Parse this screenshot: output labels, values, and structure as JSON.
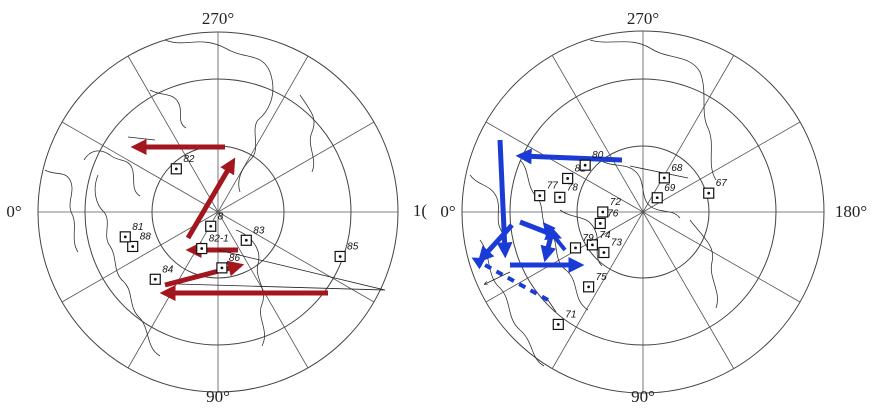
{
  "left_map": {
    "labels": {
      "top": "270°",
      "left": "0°",
      "right": "1(",
      "bottom": "90°"
    },
    "points": [
      {
        "label": "88",
        "lat": 44,
        "lon": 22
      },
      {
        "label": "81",
        "lat": 42,
        "lon": 15
      },
      {
        "label": "82",
        "lat": 60,
        "lon": 314
      },
      {
        "label": "8",
        "lat": 82,
        "lon": 63
      },
      {
        "label": "82-1",
        "lat": 70,
        "lon": 66
      },
      {
        "label": "83",
        "lat": 70,
        "lon": 135
      },
      {
        "label": "84",
        "lat": 44,
        "lon": 47
      },
      {
        "label": "86",
        "lat": 62,
        "lon": 94
      },
      {
        "label": "85",
        "lat": 25,
        "lon": 160
      }
    ],
    "arrow_color": "#a3161d"
  },
  "right_map": {
    "labels": {
      "top": "270°",
      "left": "0°",
      "right": "180°",
      "bottom": "90°"
    },
    "points": [
      {
        "label": "77",
        "lat": 38,
        "lon": 351
      },
      {
        "label": "78",
        "lat": 48,
        "lon": 350
      },
      {
        "label": "81",
        "lat": 49,
        "lon": 336
      },
      {
        "label": "80",
        "lat": 53,
        "lon": 321
      },
      {
        "label": "68",
        "lat": 70,
        "lon": 238
      },
      {
        "label": "67",
        "lat": 56,
        "lon": 196
      },
      {
        "label": "69",
        "lat": 80,
        "lon": 225
      },
      {
        "label": "72",
        "lat": 70,
        "lon": 0
      },
      {
        "label": "76",
        "lat": 68,
        "lon": 15
      },
      {
        "label": "73",
        "lat": 62,
        "lon": 46
      },
      {
        "label": "74",
        "lat": 60,
        "lon": 33
      },
      {
        "label": "75",
        "lat": 44,
        "lon": 54
      },
      {
        "label": "79",
        "lat": 52,
        "lon": 28
      },
      {
        "label": "71",
        "lat": 20,
        "lon": 53
      }
    ],
    "arrow_color": "#1a3bd6"
  }
}
